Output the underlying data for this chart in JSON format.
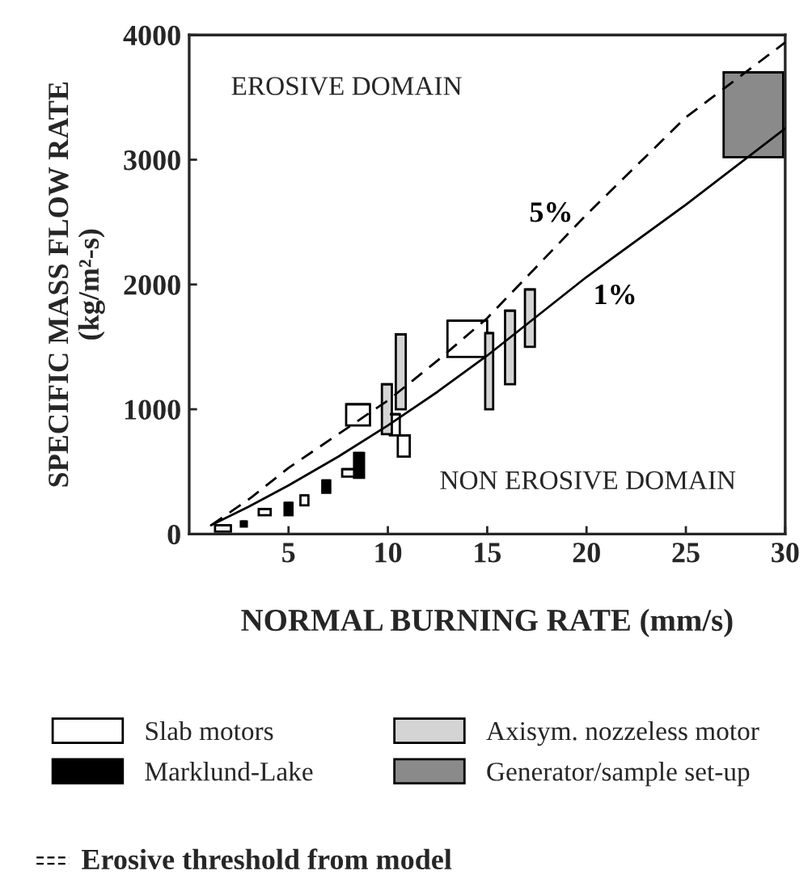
{
  "chart_data": {
    "type": "bar",
    "xlabel": "NORMAL BURNING RATE (mm/s)",
    "ylabel": "SPECIFIC MASS FLOW RATE\n(kg/m²-s)",
    "xlim": [
      0,
      30
    ],
    "xticks": [
      5,
      10,
      15,
      20,
      25,
      30
    ],
    "ylim": [
      0,
      4000
    ],
    "yticks": [
      0,
      1000,
      2000,
      3000,
      4000
    ],
    "grid": false,
    "legend": "bottom",
    "series": [
      {
        "name": "Slab motors",
        "color": "#ffffff",
        "x": [
          1.7,
          3.8,
          5.8,
          8.05,
          8.5,
          10.35,
          10.8,
          14.0
        ],
        "base": [
          20,
          150,
          230,
          460,
          870,
          790,
          620,
          1420
        ],
        "values": [
          50,
          50,
          80,
          60,
          170,
          170,
          170,
          290
        ],
        "xerrors": [
          [
            1.3,
            2.1
          ],
          [
            3.5,
            4.1
          ],
          [
            5.6,
            6.0
          ],
          [
            7.7,
            8.4
          ],
          [
            7.9,
            9.1
          ],
          [
            10.1,
            10.6
          ],
          [
            10.5,
            11.1
          ],
          [
            13.0,
            15.0
          ]
        ]
      },
      {
        "name": "Marklund-Lake",
        "color": "#000000",
        "x": [
          2.75,
          5.0,
          6.9,
          8.55
        ],
        "base": [
          60,
          150,
          330,
          450
        ],
        "values": [
          40,
          100,
          100,
          200
        ],
        "xerrors": [
          [
            2.6,
            2.9
          ],
          [
            4.8,
            5.2
          ],
          [
            6.7,
            7.1
          ],
          [
            8.3,
            8.8
          ]
        ]
      },
      {
        "name": "Axisym. nozzeless motor",
        "color": "#d4d4d4",
        "x": [
          9.95,
          10.65,
          15.1,
          16.15,
          17.15
        ],
        "base": [
          800,
          1000,
          1000,
          1200,
          1500
        ],
        "values": [
          400,
          600,
          610,
          590,
          460
        ],
        "xerrors": [
          [
            9.7,
            10.2
          ],
          [
            10.4,
            10.9
          ],
          [
            14.9,
            15.3
          ],
          [
            15.9,
            16.4
          ],
          [
            16.9,
            17.4
          ]
        ]
      },
      {
        "name": "Generator/sample set-up",
        "color": "#8a8a8a",
        "x": [
          28.4
        ],
        "base": [
          3020
        ],
        "values": [
          680
        ],
        "xerrors": [
          [
            26.9,
            29.9
          ]
        ]
      },
      {
        "name": "5%",
        "type": "line",
        "line_style": "dashed",
        "color": "#000000",
        "x": [
          1.1,
          3.1,
          5,
          7.5,
          10,
          12.5,
          15,
          20,
          25,
          30
        ],
        "values": [
          70,
          290,
          530,
          800,
          1070,
          1390,
          1730,
          2560,
          3340,
          3940
        ]
      },
      {
        "name": "1%",
        "type": "line",
        "line_style": "solid",
        "color": "#000000",
        "x": [
          1.1,
          3,
          5,
          7.5,
          10,
          12.5,
          15,
          20,
          25,
          30
        ],
        "values": [
          70,
          220,
          390,
          620,
          870,
          1140,
          1430,
          2060,
          2640,
          3250
        ]
      }
    ],
    "annotations": [
      "EROSIVE DOMAIN",
      "NON EROSIVE DOMAIN",
      "Erosive threshold from model"
    ]
  }
}
